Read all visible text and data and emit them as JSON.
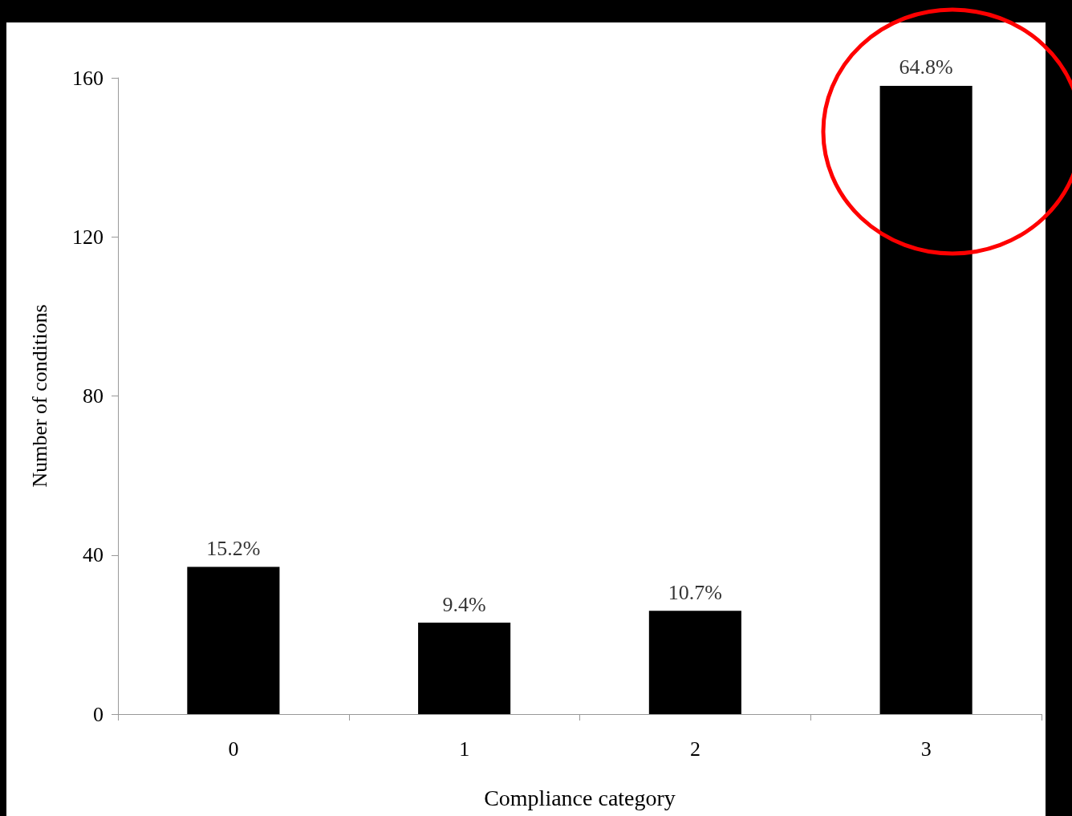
{
  "chart_data": {
    "type": "bar",
    "xlabel": "Compliance category",
    "ylabel": "Number of conditions",
    "categories": [
      "0",
      "1",
      "2",
      "3"
    ],
    "values": [
      37,
      23,
      26,
      158
    ],
    "annotations": [
      {
        "text": "15.2%",
        "x": "0",
        "y": 37
      },
      {
        "text": "9.4%",
        "x": "1",
        "y": 23
      },
      {
        "text": "10.7%",
        "x": "2",
        "y": 26
      },
      {
        "text": "64.8%",
        "x": "3",
        "y": 158
      }
    ],
    "color": "#000000",
    "ylim": [
      0,
      160
    ],
    "yticks": [
      0,
      40,
      80,
      120,
      160
    ]
  }
}
